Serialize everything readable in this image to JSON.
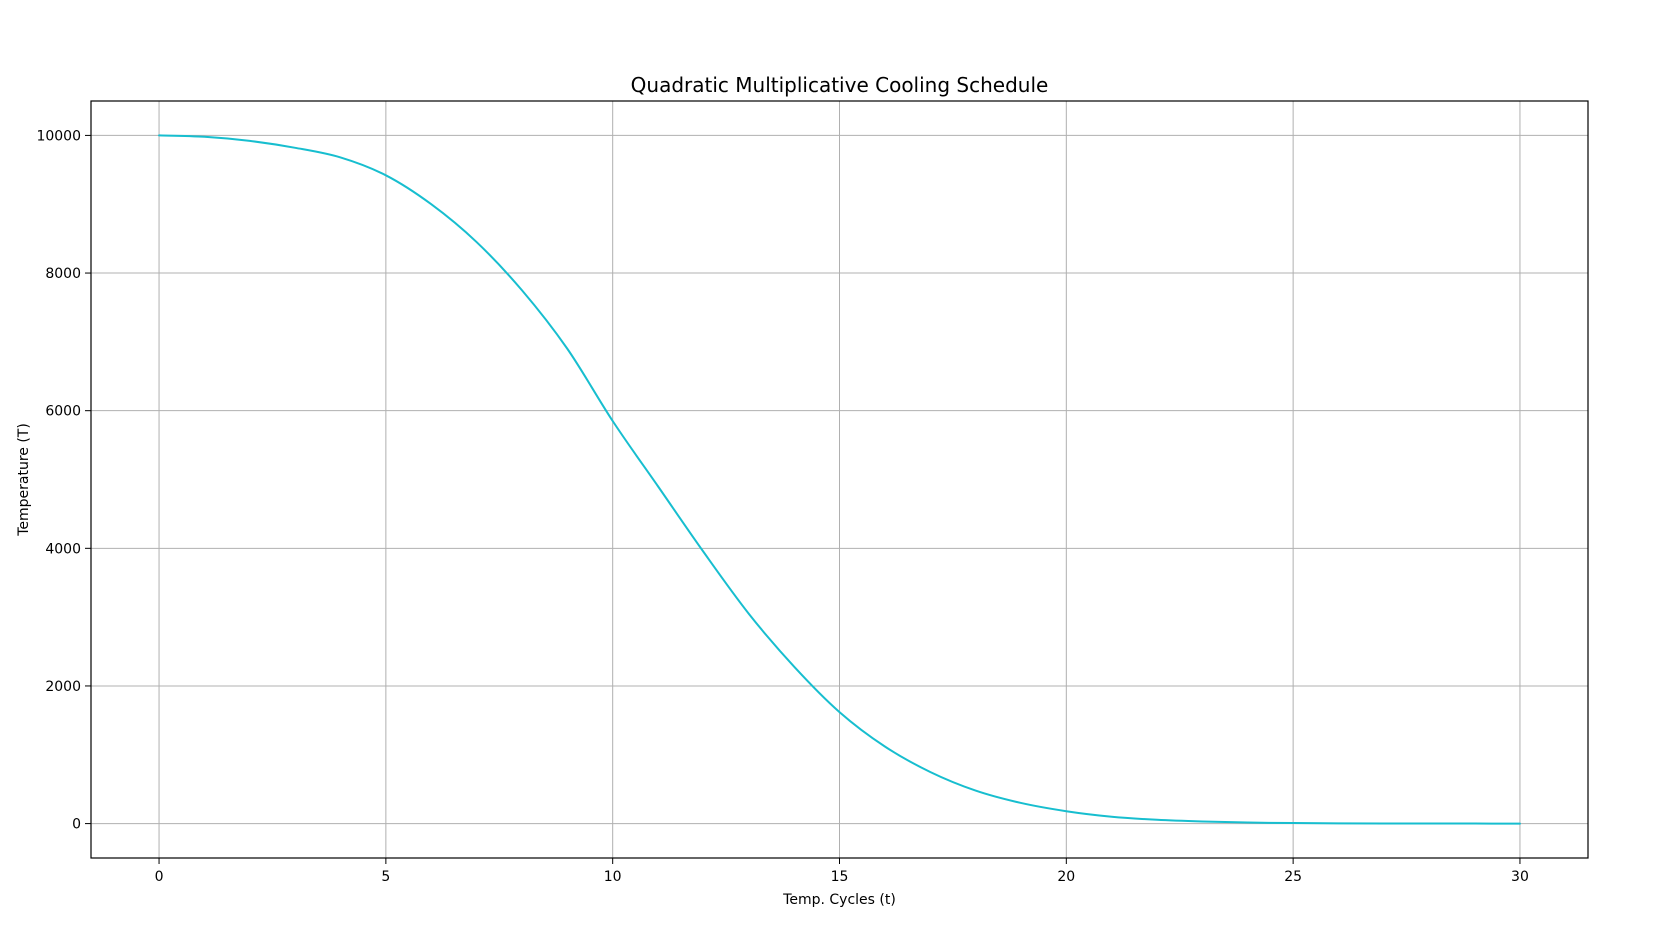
{
  "chart_data": {
    "type": "line",
    "title": "Quadratic Multiplicative Cooling Schedule",
    "xlabel": "Temp. Cycles (t)",
    "ylabel": "Temperature (T)",
    "xlim": [
      -1.5,
      31.5
    ],
    "ylim": [
      -500,
      10500
    ],
    "xticks": [
      0,
      5,
      10,
      15,
      20,
      25,
      30
    ],
    "yticks": [
      0,
      2000,
      4000,
      6000,
      8000,
      10000
    ],
    "xtick_labels": [
      "0",
      "5",
      "10",
      "15",
      "20",
      "25",
      "30"
    ],
    "ytick_labels": [
      "0",
      "2000",
      "4000",
      "6000",
      "8000",
      "10000"
    ],
    "grid": true,
    "legend": "none",
    "series": [
      {
        "color": "#17becf",
        "x": [
          0,
          1,
          2,
          3,
          4,
          5,
          6,
          7,
          8,
          9,
          10,
          11,
          12,
          13,
          14,
          15,
          16,
          17,
          18,
          19,
          20,
          21,
          22,
          23,
          24,
          25,
          26,
          27,
          28,
          29,
          30
        ],
        "y": [
          10000,
          9980,
          9920,
          9820,
          9680,
          9420,
          9000,
          8450,
          7750,
          6900,
          5850,
          4900,
          3950,
          3050,
          2280,
          1620,
          1120,
          750,
          480,
          300,
          180,
          100,
          55,
          30,
          15,
          8,
          4,
          2,
          1,
          0.5,
          0.2
        ]
      }
    ]
  }
}
